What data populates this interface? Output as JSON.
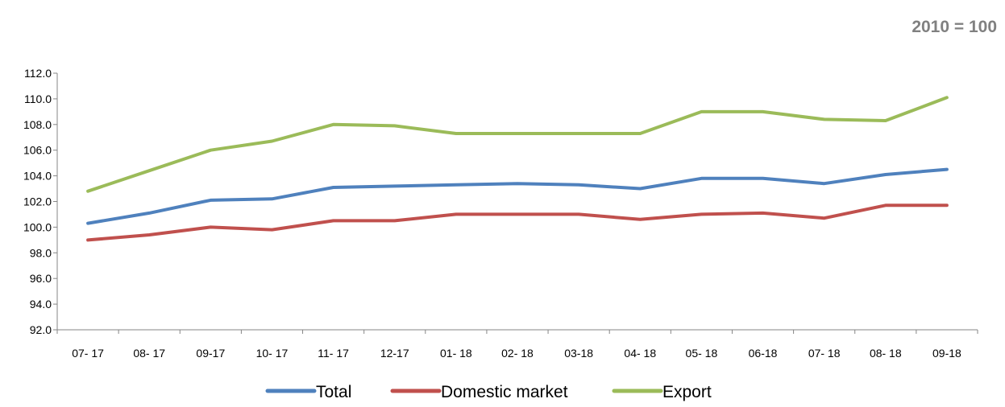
{
  "chart_data": {
    "type": "line",
    "base_label": "2010 = 100",
    "categories": [
      "07- 17",
      "08- 17",
      "09-17",
      "10- 17",
      "11- 17",
      "12-17",
      "01- 18",
      "02- 18",
      "03-18",
      "04- 18",
      "05- 18",
      "06-18",
      "07- 18",
      "08- 18",
      "09-18"
    ],
    "ylim": [
      92.0,
      112.0
    ],
    "yticks": [
      "92.0",
      "94.0",
      "96.0",
      "98.0",
      "100.0",
      "102.0",
      "104.0",
      "106.0",
      "108.0",
      "110.0",
      "112.0"
    ],
    "grid": false,
    "legend_position": "bottom",
    "series": [
      {
        "name": "Total",
        "color": "#4f81bd",
        "values": [
          100.3,
          101.1,
          102.1,
          102.2,
          103.1,
          103.2,
          103.3,
          103.4,
          103.3,
          103.0,
          103.8,
          103.8,
          103.4,
          104.1,
          104.5
        ]
      },
      {
        "name": "Domestic market",
        "color": "#c0504d",
        "values": [
          99.0,
          99.4,
          100.0,
          99.8,
          100.5,
          100.5,
          101.0,
          101.0,
          101.0,
          100.6,
          101.0,
          101.1,
          100.7,
          101.7,
          101.7
        ]
      },
      {
        "name": "Export",
        "color": "#9bbb59",
        "values": [
          102.8,
          104.4,
          106.0,
          106.7,
          108.0,
          107.9,
          107.3,
          107.3,
          107.3,
          107.3,
          109.0,
          109.0,
          108.4,
          108.3,
          110.1
        ]
      }
    ]
  }
}
